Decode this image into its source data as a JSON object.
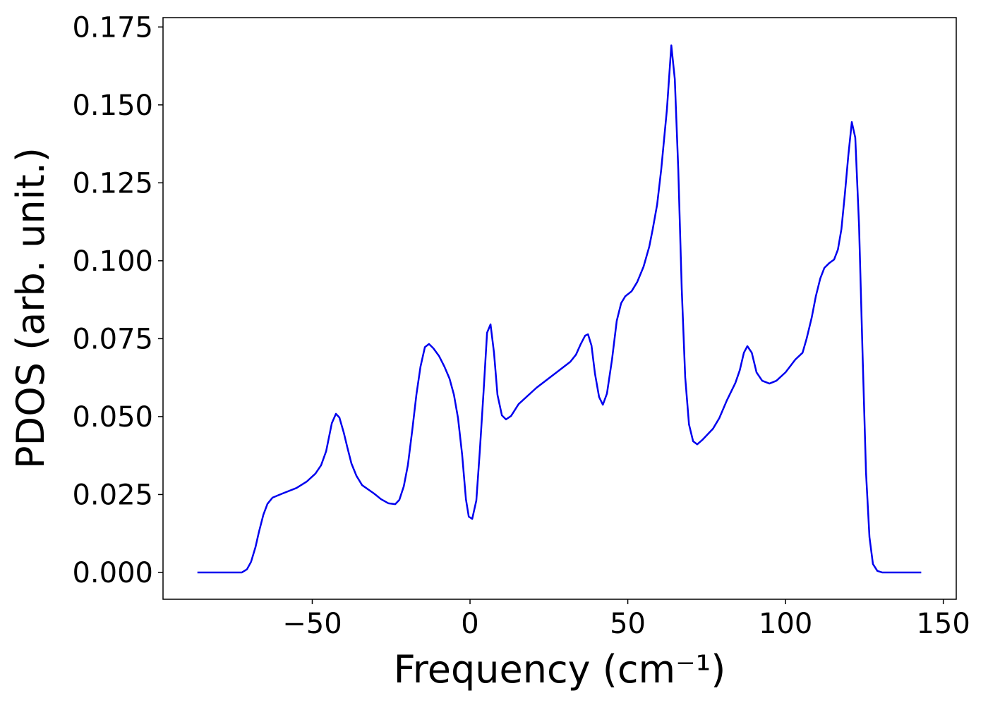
{
  "chart_data": {
    "type": "line",
    "xlabel": "Frequency (cm⁻¹)",
    "ylabel": "PDOS (arb. unit.)",
    "xlim": [
      -97.3,
      154.1
    ],
    "ylim": [
      -0.0086,
      0.178
    ],
    "xticks": [
      {
        "value": -50,
        "label": "−50"
      },
      0,
      50,
      100,
      150
    ],
    "yticks": [
      {
        "value": 0,
        "label": "0.000"
      },
      {
        "value": 0.025,
        "label": "0.025"
      },
      {
        "value": 0.05,
        "label": "0.050"
      },
      {
        "value": 0.075,
        "label": "0.075"
      },
      {
        "value": 0.1,
        "label": "0.100"
      },
      {
        "value": 0.125,
        "label": "0.125"
      },
      {
        "value": 0.15,
        "label": "0.150"
      },
      {
        "value": 0.175,
        "label": "0.175"
      }
    ],
    "grid": false,
    "series": [
      {
        "color": "#0000ee",
        "x": [
          -86.4,
          -72.3,
          -70.7,
          -69.4,
          -68.0,
          -66.9,
          -65.5,
          -64.2,
          -62.6,
          -59.5,
          -55.0,
          -51.7,
          -49.0,
          -47.2,
          -45.6,
          -43.8,
          -42.5,
          -41.4,
          -40.0,
          -38.9,
          -37.6,
          -36.0,
          -34.2,
          -30.4,
          -28.2,
          -25.9,
          -23.7,
          -22.4,
          -21.0,
          -19.7,
          -18.3,
          -17.0,
          -15.7,
          -14.3,
          -13.0,
          -11.6,
          -9.8,
          -8.1,
          -6.5,
          -5.1,
          -3.8,
          -2.5,
          -1.3,
          -0.4,
          0.7,
          2.0,
          3.1,
          4.3,
          5.4,
          6.5,
          7.6,
          8.7,
          10.1,
          11.4,
          13.0,
          15.4,
          21.0,
          27.7,
          31.8,
          33.6,
          35.1,
          36.5,
          37.4,
          38.5,
          39.6,
          40.9,
          42.1,
          43.4,
          45.0,
          46.5,
          47.9,
          49.2,
          51.2,
          53.0,
          55.0,
          56.8,
          57.9,
          59.3,
          60.6,
          62.4,
          63.8,
          64.9,
          66.0,
          67.1,
          68.2,
          69.4,
          70.7,
          72.0,
          73.6,
          77.0,
          79.0,
          81.4,
          84.1,
          85.5,
          86.8,
          87.9,
          89.3,
          90.8,
          92.6,
          94.9,
          97.1,
          100.0,
          103.1,
          105.4,
          106.7,
          108.3,
          109.6,
          111.0,
          112.3,
          113.9,
          115.4,
          116.6,
          117.7,
          118.8,
          119.9,
          121.0,
          122.1,
          123.3,
          124.4,
          125.5,
          126.6,
          127.7,
          129.1,
          130.6,
          143.0
        ],
        "values": [
          0,
          0,
          0.001,
          0.0034,
          0.0081,
          0.013,
          0.0185,
          0.022,
          0.024,
          0.0253,
          0.0271,
          0.0292,
          0.0317,
          0.0344,
          0.0389,
          0.0479,
          0.0509,
          0.0497,
          0.0448,
          0.0402,
          0.035,
          0.031,
          0.028,
          0.0253,
          0.0235,
          0.0222,
          0.0219,
          0.0233,
          0.0276,
          0.0344,
          0.0457,
          0.057,
          0.066,
          0.0723,
          0.0733,
          0.0719,
          0.0694,
          0.066,
          0.0622,
          0.057,
          0.0495,
          0.0378,
          0.0235,
          0.0179,
          0.0172,
          0.0231,
          0.0389,
          0.0581,
          0.0769,
          0.0796,
          0.0705,
          0.057,
          0.0504,
          0.0491,
          0.0502,
          0.054,
          0.0592,
          0.0644,
          0.0676,
          0.0699,
          0.0733,
          0.076,
          0.0764,
          0.0728,
          0.0638,
          0.0563,
          0.0538,
          0.0574,
          0.0683,
          0.0807,
          0.0864,
          0.0886,
          0.0902,
          0.0932,
          0.0981,
          0.1045,
          0.1101,
          0.118,
          0.1293,
          0.1485,
          0.1691,
          0.1583,
          0.1293,
          0.0909,
          0.0626,
          0.0475,
          0.0421,
          0.0411,
          0.0425,
          0.0461,
          0.0495,
          0.0552,
          0.0608,
          0.0649,
          0.0705,
          0.0726,
          0.0705,
          0.0642,
          0.0615,
          0.0606,
          0.0615,
          0.0642,
          0.0683,
          0.0705,
          0.0751,
          0.0818,
          0.0886,
          0.0943,
          0.0977,
          0.0993,
          0.1004,
          0.1036,
          0.1101,
          0.1214,
          0.1338,
          0.1445,
          0.1395,
          0.1112,
          0.0705,
          0.0321,
          0.0113,
          0.0027,
          0.0005,
          0,
          0
        ]
      }
    ]
  }
}
